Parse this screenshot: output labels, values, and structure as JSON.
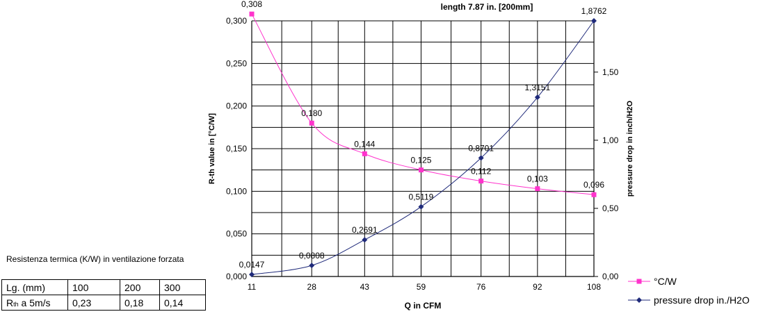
{
  "chart_data": {
    "type": "line",
    "title": "length 7.87 in. [200mm]",
    "xlabel": "Q in CFM",
    "ylabel_left": "R-th value in [°C/W]",
    "ylabel_right": "pressure drop in inch/H2O",
    "x": [
      11,
      28,
      43,
      59,
      76,
      92,
      108
    ],
    "x_tick_labels": [
      "11",
      "28",
      "43",
      "59",
      "76",
      "92",
      "108"
    ],
    "ylim_left": [
      0,
      0.3
    ],
    "yticks_left": [
      "0,000",
      "0,050",
      "0,100",
      "0,150",
      "0,200",
      "0,250",
      "0,300"
    ],
    "ylim_right": [
      0,
      1.8762
    ],
    "yticks_right": [
      "0,00",
      "0,50",
      "1,00",
      "1,50"
    ],
    "grid": true,
    "legend_position": "bottom-right",
    "series": [
      {
        "name": "°C/W",
        "axis": "left",
        "color": "#ff33cc",
        "marker": "square",
        "values": [
          0.308,
          0.18,
          0.144,
          0.125,
          0.112,
          0.103,
          0.096
        ],
        "labels": [
          "0,308",
          "0,180",
          "0,144",
          "0,125",
          "0,112",
          "0,103",
          "0,096"
        ]
      },
      {
        "name": "pressure drop in./H2O",
        "axis": "right",
        "color": "#1f2a7a",
        "marker": "diamond",
        "values": [
          0.0147,
          0.0808,
          0.2691,
          0.5119,
          0.8701,
          1.3151,
          1.8762
        ],
        "labels": [
          "0,0147",
          "0,0808",
          "0,2691",
          "0,5119",
          "0,8701",
          "1,3151",
          "1,8762"
        ]
      }
    ]
  },
  "table_section": {
    "caption": "Resistenza termica (K/W) in ventilazione forzata",
    "rows": [
      {
        "label": "Lg. (mm)",
        "cells": [
          "100",
          "200",
          "300"
        ]
      },
      {
        "label_main": "R",
        "label_sub": "th",
        "label_rest": " a 5m/s",
        "cells": [
          "0,23",
          "0,18",
          "0,14"
        ]
      }
    ]
  }
}
